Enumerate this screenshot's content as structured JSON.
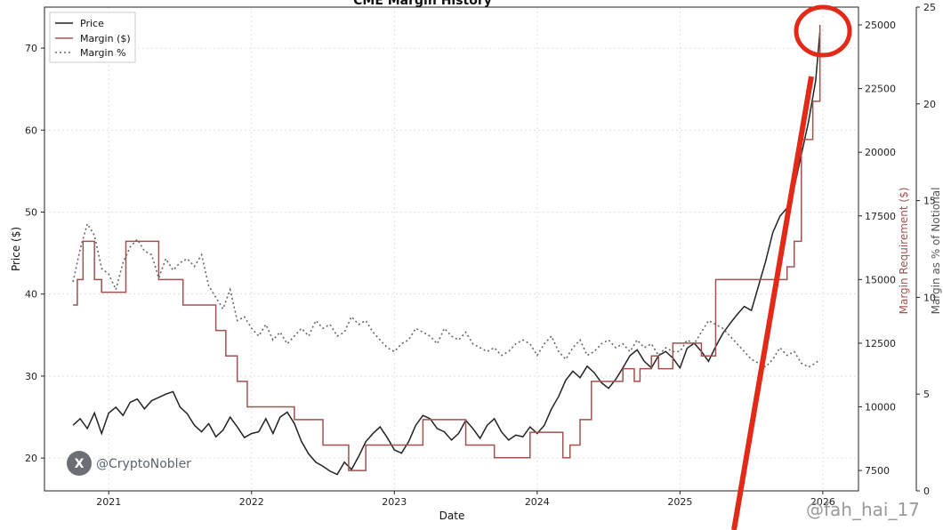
{
  "chart_data": {
    "type": "line",
    "title": "CME Margin History",
    "xlabel": "Date",
    "ylabel_left": "Price ($)",
    "ylabel_right_margin": "Margin Requirement ($)",
    "ylabel_right_pct": "Margin as % of Notional",
    "x_ticks": [
      "2021",
      "2022",
      "2023",
      "2024",
      "2025",
      "2026"
    ],
    "y_left_ticks": [
      20,
      30,
      40,
      50,
      60,
      70
    ],
    "y_left_lim": [
      16,
      75
    ],
    "y_margin_ticks": [
      7500,
      10000,
      12500,
      15000,
      17500,
      20000,
      22500,
      25000
    ],
    "y_margin_lim": [
      6700,
      25700
    ],
    "y_pct_ticks": [
      0,
      5,
      10,
      15,
      20,
      25
    ],
    "y_pct_lim": [
      0,
      25
    ],
    "x_lim": [
      2020.55,
      2026.25
    ],
    "grid": true,
    "legend_position": "top-left",
    "colors": {
      "price": "#222222",
      "margin": "#a0524f",
      "pct": "#666666",
      "annotation": "#e32a18",
      "grid": "#d9d9d9"
    },
    "series": [
      {
        "name": "Price",
        "style": "solid",
        "axis": "left",
        "x": [
          2020.75,
          2020.8,
          2020.85,
          2020.9,
          2020.95,
          2021.0,
          2021.05,
          2021.1,
          2021.15,
          2021.2,
          2021.25,
          2021.3,
          2021.35,
          2021.4,
          2021.45,
          2021.5,
          2021.55,
          2021.6,
          2021.65,
          2021.7,
          2021.75,
          2021.8,
          2021.85,
          2021.9,
          2021.95,
          2022.0,
          2022.05,
          2022.1,
          2022.15,
          2022.2,
          2022.25,
          2022.3,
          2022.35,
          2022.4,
          2022.45,
          2022.5,
          2022.55,
          2022.6,
          2022.65,
          2022.7,
          2022.75,
          2022.8,
          2022.85,
          2022.9,
          2022.95,
          2023.0,
          2023.05,
          2023.1,
          2023.15,
          2023.2,
          2023.25,
          2023.3,
          2023.35,
          2023.4,
          2023.45,
          2023.5,
          2023.55,
          2023.6,
          2023.65,
          2023.7,
          2023.75,
          2023.8,
          2023.85,
          2023.9,
          2023.95,
          2024.0,
          2024.05,
          2024.1,
          2024.15,
          2024.2,
          2024.25,
          2024.3,
          2024.35,
          2024.4,
          2024.45,
          2024.5,
          2024.55,
          2024.6,
          2024.65,
          2024.7,
          2024.75,
          2024.8,
          2024.85,
          2024.9,
          2024.95,
          2025.0,
          2025.05,
          2025.1,
          2025.15,
          2025.2,
          2025.25,
          2025.3,
          2025.35,
          2025.4,
          2025.45,
          2025.5,
          2025.55,
          2025.6,
          2025.65,
          2025.7,
          2025.75,
          2025.8,
          2025.85,
          2025.9,
          2025.95,
          2025.98
        ],
        "values": [
          24.0,
          24.8,
          23.6,
          25.5,
          23.0,
          25.5,
          26.2,
          25.2,
          26.8,
          27.2,
          26.0,
          27.0,
          27.4,
          27.8,
          28.1,
          26.2,
          25.4,
          24.0,
          23.2,
          24.2,
          22.6,
          23.4,
          25.0,
          23.8,
          22.5,
          23.0,
          23.2,
          24.8,
          23.0,
          25.0,
          25.6,
          24.2,
          22.0,
          20.5,
          19.5,
          19.0,
          18.4,
          18.0,
          19.5,
          18.6,
          20.2,
          22.0,
          23.0,
          23.8,
          22.5,
          21.0,
          20.6,
          22.0,
          24.0,
          25.2,
          24.8,
          23.6,
          23.2,
          22.2,
          23.0,
          24.6,
          23.6,
          22.4,
          24.0,
          24.8,
          23.2,
          22.2,
          22.8,
          22.6,
          23.8,
          23.0,
          24.0,
          26.0,
          27.5,
          29.5,
          30.6,
          29.8,
          31.2,
          30.4,
          29.2,
          28.5,
          29.6,
          31.0,
          32.5,
          33.2,
          31.8,
          31.0,
          32.5,
          33.0,
          32.2,
          31.0,
          33.4,
          34.0,
          33.0,
          31.8,
          33.6,
          35.2,
          36.4,
          37.5,
          38.5,
          38.0,
          41.0,
          44.0,
          47.5,
          49.5,
          50.5,
          53.0,
          57.0,
          61.0,
          66.0,
          72.0
        ]
      },
      {
        "name": "Margin ($)",
        "style": "step",
        "axis": "margin",
        "x": [
          2020.75,
          2020.78,
          2020.82,
          2020.9,
          2020.95,
          2021.12,
          2021.35,
          2021.52,
          2021.75,
          2021.82,
          2021.9,
          2021.97,
          2022.3,
          2022.5,
          2022.68,
          2022.8,
          2023.2,
          2023.5,
          2023.7,
          2023.95,
          2024.15,
          2024.18,
          2024.23,
          2024.3,
          2024.38,
          2024.6,
          2024.68,
          2024.72,
          2024.8,
          2024.85,
          2024.95,
          2025.05,
          2025.15,
          2025.25,
          2025.45,
          2025.75,
          2025.8,
          2025.85,
          2025.93,
          2025.98
        ],
        "values": [
          14000,
          15000,
          16500,
          15000,
          14500,
          16500,
          15000,
          14000,
          13000,
          12000,
          11000,
          10000,
          9500,
          8500,
          7500,
          8500,
          9500,
          8500,
          8000,
          9000,
          9000,
          8000,
          8500,
          9500,
          11000,
          11500,
          11000,
          11500,
          12000,
          11500,
          12500,
          12500,
          12000,
          15000,
          15000,
          15500,
          16500,
          20500,
          22000,
          25000
        ]
      },
      {
        "name": "Margin %",
        "style": "dotted",
        "axis": "pct",
        "x": [
          2020.75,
          2020.8,
          2020.85,
          2020.9,
          2020.95,
          2021.0,
          2021.05,
          2021.1,
          2021.15,
          2021.2,
          2021.25,
          2021.3,
          2021.35,
          2021.4,
          2021.45,
          2021.5,
          2021.55,
          2021.6,
          2021.65,
          2021.7,
          2021.75,
          2021.8,
          2021.85,
          2021.9,
          2021.95,
          2022.0,
          2022.05,
          2022.1,
          2022.15,
          2022.2,
          2022.25,
          2022.3,
          2022.35,
          2022.4,
          2022.45,
          2022.5,
          2022.55,
          2022.6,
          2022.65,
          2022.7,
          2022.75,
          2022.8,
          2022.85,
          2022.9,
          2022.95,
          2023.0,
          2023.05,
          2023.1,
          2023.15,
          2023.2,
          2023.25,
          2023.3,
          2023.35,
          2023.4,
          2023.45,
          2023.5,
          2023.55,
          2023.6,
          2023.65,
          2023.7,
          2023.75,
          2023.8,
          2023.85,
          2023.9,
          2023.95,
          2024.0,
          2024.05,
          2024.1,
          2024.15,
          2024.2,
          2024.25,
          2024.3,
          2024.35,
          2024.4,
          2024.45,
          2024.5,
          2024.55,
          2024.6,
          2024.65,
          2024.7,
          2024.75,
          2024.8,
          2024.85,
          2024.9,
          2024.95,
          2025.0,
          2025.05,
          2025.1,
          2025.15,
          2025.2,
          2025.25,
          2025.3,
          2025.35,
          2025.4,
          2025.45,
          2025.5,
          2025.55,
          2025.6,
          2025.65,
          2025.7,
          2025.75,
          2025.8,
          2025.85,
          2025.9,
          2025.95,
          2025.98
        ],
        "values": [
          10.8,
          12.5,
          13.8,
          13.2,
          11.5,
          11.2,
          10.4,
          11.8,
          12.6,
          13.0,
          12.4,
          12.2,
          11.0,
          12.0,
          11.4,
          11.8,
          12.0,
          11.6,
          12.2,
          10.6,
          10.0,
          9.4,
          10.4,
          8.8,
          9.0,
          8.4,
          8.0,
          8.6,
          7.8,
          8.2,
          7.6,
          8.0,
          8.4,
          8.0,
          8.8,
          8.4,
          8.6,
          8.0,
          8.2,
          9.0,
          8.6,
          8.8,
          8.2,
          7.8,
          7.4,
          7.2,
          7.6,
          7.8,
          8.4,
          8.2,
          8.0,
          7.6,
          8.4,
          8.0,
          7.8,
          8.2,
          7.6,
          7.4,
          7.2,
          7.4,
          7.0,
          7.2,
          7.6,
          7.8,
          7.6,
          7.0,
          7.6,
          8.0,
          7.2,
          6.8,
          7.4,
          7.8,
          7.0,
          7.2,
          7.6,
          7.8,
          7.4,
          7.6,
          7.2,
          7.8,
          7.4,
          7.6,
          7.0,
          7.4,
          7.2,
          7.2,
          7.8,
          7.6,
          8.2,
          8.8,
          8.6,
          8.4,
          8.0,
          7.6,
          7.2,
          6.8,
          6.6,
          6.4,
          6.8,
          7.4,
          7.0,
          7.2,
          6.6,
          6.4,
          6.6,
          6.8
        ]
      }
    ],
    "watermarks": {
      "left": "@CryptoNobler",
      "right": "@fah_hai_17"
    }
  }
}
